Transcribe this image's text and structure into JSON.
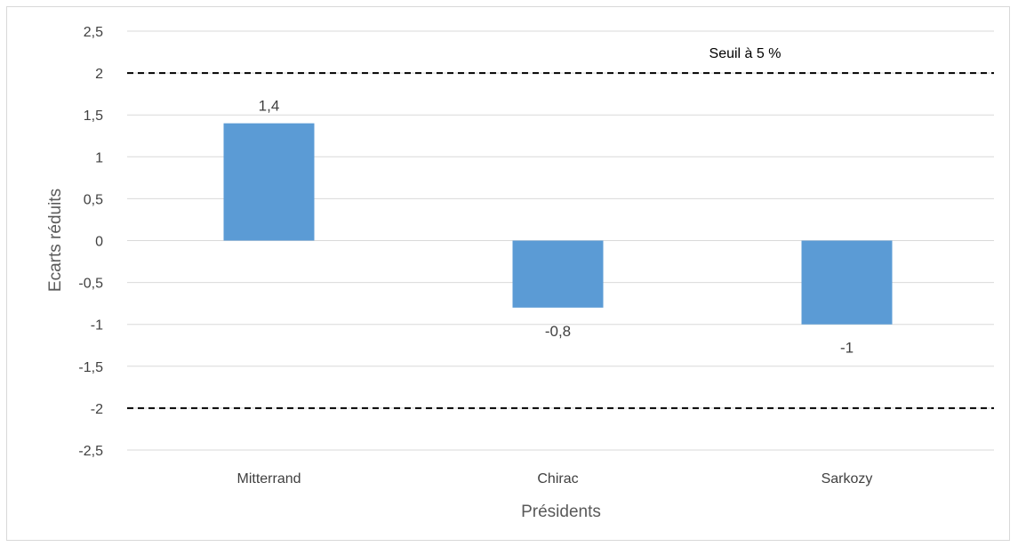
{
  "chart_data": {
    "type": "bar",
    "title": "",
    "xlabel": "Présidents",
    "ylabel": "Ecarts réduits",
    "categories": [
      "Mitterrand",
      "Chirac",
      "Sarkozy"
    ],
    "values": [
      1.4,
      -0.8,
      -1
    ],
    "data_labels": [
      "1,4",
      "-0,8",
      "-1"
    ],
    "ylim": [
      -2.5,
      2.5
    ],
    "yticks": [
      2.5,
      2,
      1.5,
      1,
      0.5,
      0,
      -0.5,
      -1,
      -1.5,
      -2,
      -2.5
    ],
    "ytick_labels": [
      "2,5",
      "2",
      "1,5",
      "1",
      "0,5",
      "0",
      "-0,5",
      "-1",
      "-1,5",
      "-2",
      "-2,5"
    ],
    "grid": true,
    "bar_color": "#5b9bd5",
    "threshold_lines": [
      2,
      -2
    ],
    "threshold_label": "Seuil à 5 %"
  }
}
